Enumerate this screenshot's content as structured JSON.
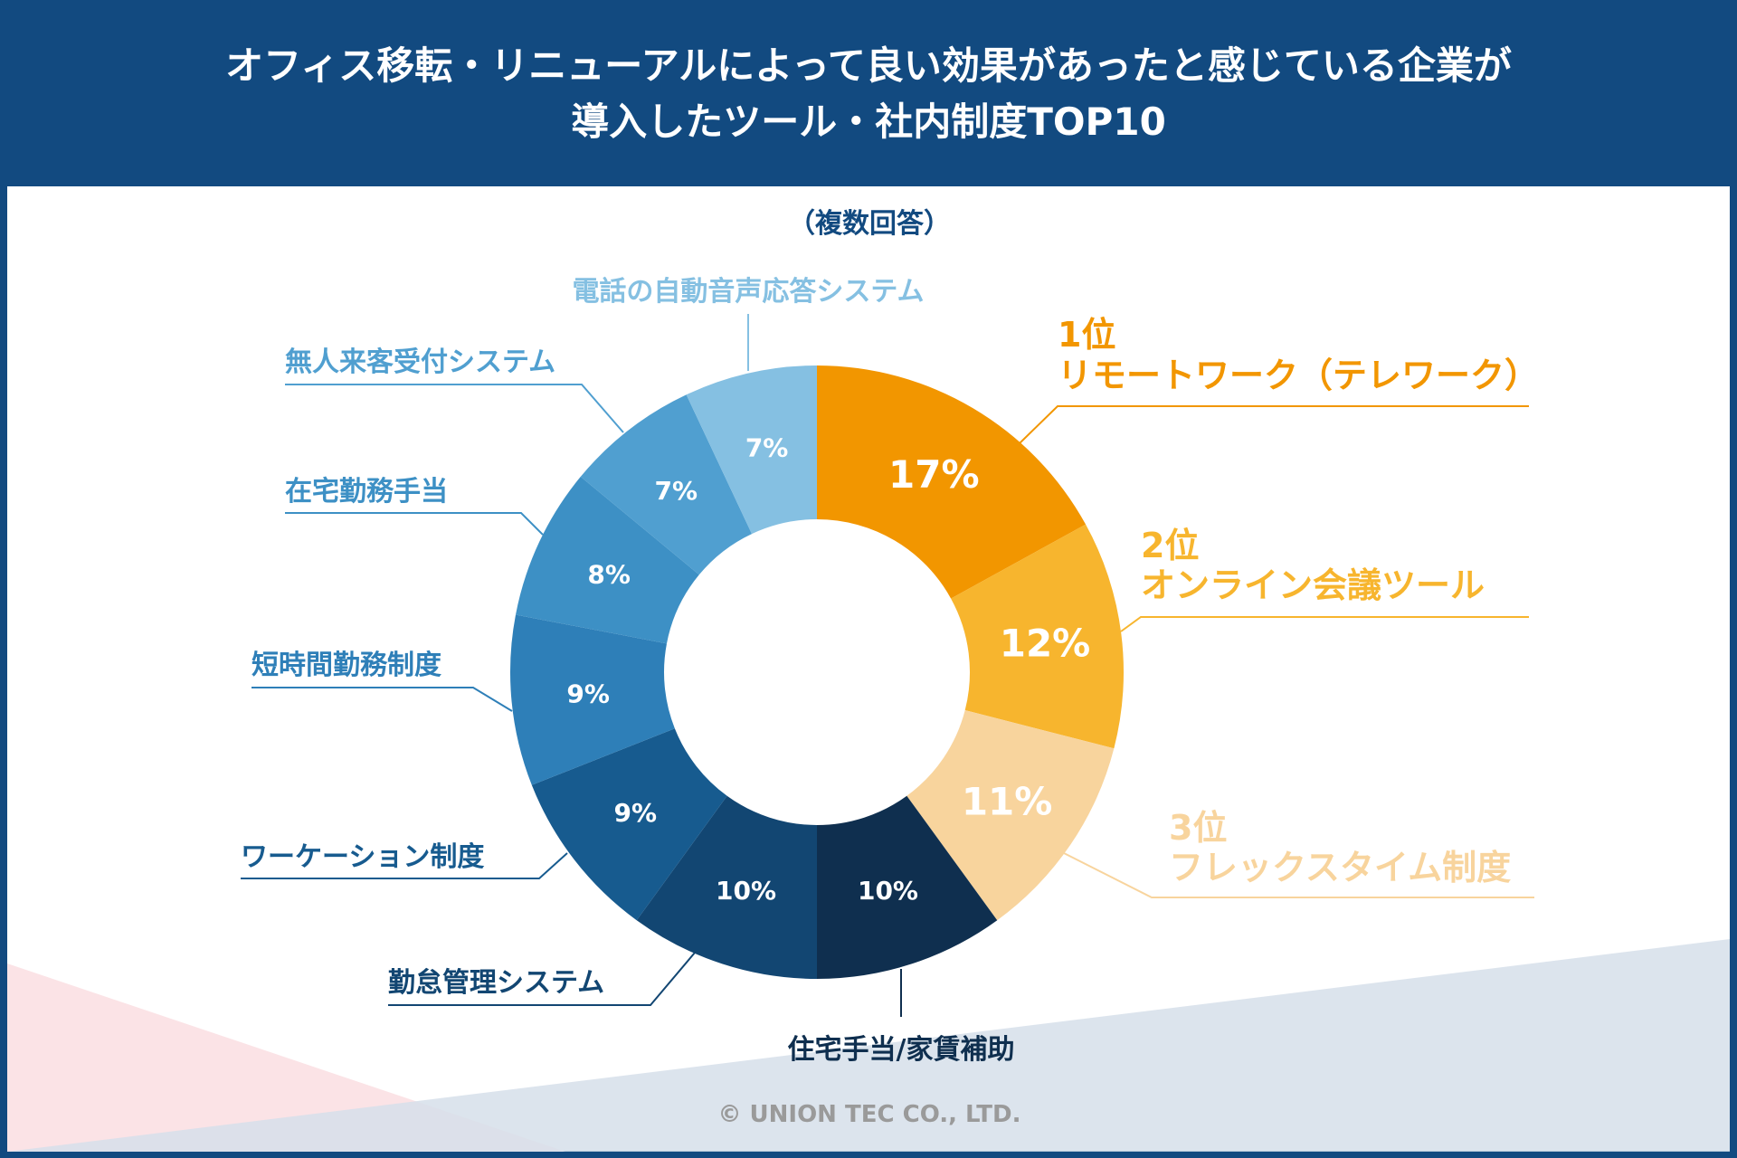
{
  "header": {
    "title_line1": "オフィス移転・リニューアルによって良い効果があったと感じている企業が",
    "title_line2": "導入したツール・社内制度TOP10"
  },
  "footer": {
    "copyright": "© UNION TEC CO., LTD."
  },
  "chart_data": {
    "type": "pie",
    "donut": true,
    "subtitle": "（複数回答）",
    "unit": "%",
    "direction": "clockwise from top",
    "slices": [
      {
        "rank": "1位",
        "label": "リモートワーク（テレワーク）",
        "value": 17,
        "color": "#f29600"
      },
      {
        "rank": "2位",
        "label": "オンライン会議ツール",
        "value": 12,
        "color": "#f7b52e"
      },
      {
        "rank": "3位",
        "label": "フレックスタイム制度",
        "value": 11,
        "color": "#f8d49d"
      },
      {
        "label": "住宅手当/家賃補助",
        "value": 10,
        "color": "#0f2f4f"
      },
      {
        "label": "勤怠管理システム",
        "value": 10,
        "color": "#124672"
      },
      {
        "label": "ワーケーション制度",
        "value": 9,
        "color": "#175b8f"
      },
      {
        "label": "短時間勤務制度",
        "value": 9,
        "color": "#2e7fb8"
      },
      {
        "label": "在宅勤務手当",
        "value": 8,
        "color": "#3d90c5"
      },
      {
        "label": "無人来客受付システム",
        "value": 7,
        "color": "#509fd0"
      },
      {
        "label": "電話の自動音声応答システム",
        "value": 7,
        "color": "#85c0e2"
      }
    ]
  }
}
